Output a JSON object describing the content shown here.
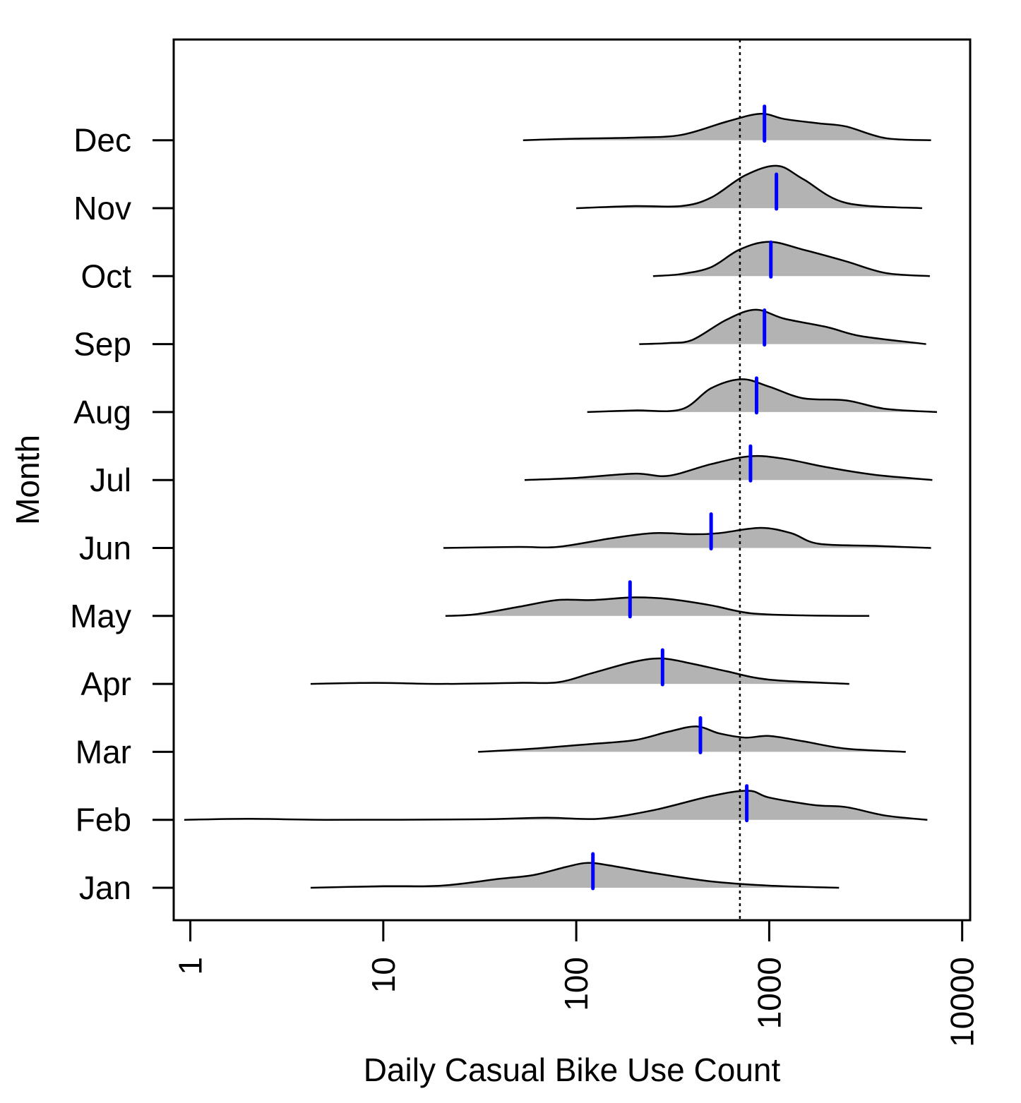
{
  "chart_data": {
    "type": "ridgeline",
    "xlabel": "Daily Casual Bike Use Count",
    "ylabel": "Month",
    "x_scale": "log10",
    "xlim": [
      0.82,
      11000
    ],
    "x_ticks": [
      1,
      10,
      100,
      1000,
      10000
    ],
    "x_tick_labels": [
      "1",
      "10",
      "100",
      "1000",
      "10000"
    ],
    "reference_line": {
      "x": 705,
      "style": "dotted",
      "color": "#000000"
    },
    "fill_color": "#b3b3b3",
    "median_color": "#0000ff",
    "categories": [
      "Jan",
      "Feb",
      "Mar",
      "Apr",
      "May",
      "Jun",
      "Jul",
      "Aug",
      "Sep",
      "Oct",
      "Nov",
      "Dec"
    ],
    "series": [
      {
        "name": "Jan",
        "median": 122,
        "density": [
          [
            4.2,
            0
          ],
          [
            10,
            0.03
          ],
          [
            20,
            0.04
          ],
          [
            40,
            0.17
          ],
          [
            60,
            0.24
          ],
          [
            90,
            0.4
          ],
          [
            115,
            0.47
          ],
          [
            150,
            0.42
          ],
          [
            250,
            0.28
          ],
          [
            500,
            0.12
          ],
          [
            1000,
            0.04
          ],
          [
            2300,
            0
          ]
        ]
      },
      {
        "name": "Feb",
        "median": 765,
        "density": [
          [
            0.93,
            0
          ],
          [
            2,
            0.02
          ],
          [
            5,
            0
          ],
          [
            30,
            0.01
          ],
          [
            70,
            0.04
          ],
          [
            130,
            0.02
          ],
          [
            250,
            0.18
          ],
          [
            500,
            0.45
          ],
          [
            780,
            0.55
          ],
          [
            1000,
            0.42
          ],
          [
            1700,
            0.28
          ],
          [
            2500,
            0.24
          ],
          [
            4000,
            0.08
          ],
          [
            6600,
            0
          ]
        ]
      },
      {
        "name": "Mar",
        "median": 440,
        "density": [
          [
            31,
            0
          ],
          [
            60,
            0.06
          ],
          [
            120,
            0.15
          ],
          [
            200,
            0.22
          ],
          [
            300,
            0.38
          ],
          [
            420,
            0.48
          ],
          [
            550,
            0.35
          ],
          [
            750,
            0.27
          ],
          [
            1000,
            0.3
          ],
          [
            1500,
            0.2
          ],
          [
            2500,
            0.06
          ],
          [
            5100,
            0
          ]
        ]
      },
      {
        "name": "Apr",
        "median": 280,
        "density": [
          [
            4.2,
            0
          ],
          [
            9,
            0.02
          ],
          [
            20,
            0
          ],
          [
            50,
            0.02
          ],
          [
            80,
            0.03
          ],
          [
            120,
            0.2
          ],
          [
            200,
            0.42
          ],
          [
            280,
            0.48
          ],
          [
            400,
            0.38
          ],
          [
            600,
            0.24
          ],
          [
            1000,
            0.08
          ],
          [
            2600,
            0
          ]
        ]
      },
      {
        "name": "May",
        "median": 190,
        "density": [
          [
            21,
            0
          ],
          [
            30,
            0.03
          ],
          [
            50,
            0.17
          ],
          [
            80,
            0.3
          ],
          [
            120,
            0.3
          ],
          [
            200,
            0.35
          ],
          [
            300,
            0.32
          ],
          [
            500,
            0.2
          ],
          [
            800,
            0.05
          ],
          [
            1500,
            0.01
          ],
          [
            3300,
            0
          ]
        ]
      },
      {
        "name": "Jun",
        "median": 500,
        "density": [
          [
            20.5,
            0
          ],
          [
            50,
            0.02
          ],
          [
            80,
            0.02
          ],
          [
            150,
            0.18
          ],
          [
            250,
            0.28
          ],
          [
            400,
            0.26
          ],
          [
            550,
            0.28
          ],
          [
            900,
            0.38
          ],
          [
            1300,
            0.28
          ],
          [
            1800,
            0.08
          ],
          [
            3500,
            0.04
          ],
          [
            6900,
            0
          ]
        ]
      },
      {
        "name": "Jul",
        "median": 800,
        "density": [
          [
            54,
            0
          ],
          [
            100,
            0.04
          ],
          [
            200,
            0.12
          ],
          [
            300,
            0.08
          ],
          [
            500,
            0.3
          ],
          [
            800,
            0.45
          ],
          [
            1200,
            0.4
          ],
          [
            2000,
            0.24
          ],
          [
            3500,
            0.1
          ],
          [
            7000,
            0
          ]
        ]
      },
      {
        "name": "Aug",
        "median": 860,
        "density": [
          [
            114,
            0
          ],
          [
            200,
            0.03
          ],
          [
            350,
            0.05
          ],
          [
            500,
            0.45
          ],
          [
            720,
            0.62
          ],
          [
            1000,
            0.48
          ],
          [
            1500,
            0.26
          ],
          [
            2500,
            0.22
          ],
          [
            4000,
            0.06
          ],
          [
            7400,
            0
          ]
        ]
      },
      {
        "name": "Sep",
        "median": 945,
        "density": [
          [
            212,
            0
          ],
          [
            300,
            0.02
          ],
          [
            400,
            0.08
          ],
          [
            600,
            0.46
          ],
          [
            850,
            0.65
          ],
          [
            1200,
            0.48
          ],
          [
            2000,
            0.32
          ],
          [
            3000,
            0.15
          ],
          [
            6500,
            0
          ]
        ]
      },
      {
        "name": "Oct",
        "median": 1020,
        "density": [
          [
            250,
            0
          ],
          [
            350,
            0.04
          ],
          [
            500,
            0.17
          ],
          [
            700,
            0.5
          ],
          [
            1000,
            0.65
          ],
          [
            1500,
            0.5
          ],
          [
            2500,
            0.28
          ],
          [
            4000,
            0.06
          ],
          [
            6800,
            0
          ]
        ]
      },
      {
        "name": "Nov",
        "median": 1090,
        "density": [
          [
            100,
            0
          ],
          [
            200,
            0.04
          ],
          [
            350,
            0.04
          ],
          [
            500,
            0.2
          ],
          [
            750,
            0.62
          ],
          [
            1100,
            0.8
          ],
          [
            1500,
            0.55
          ],
          [
            2500,
            0.1
          ],
          [
            6200,
            0
          ]
        ]
      },
      {
        "name": "Dec",
        "median": 945,
        "density": [
          [
            53,
            0
          ],
          [
            100,
            0.03
          ],
          [
            200,
            0.05
          ],
          [
            350,
            0.1
          ],
          [
            600,
            0.35
          ],
          [
            900,
            0.5
          ],
          [
            1200,
            0.4
          ],
          [
            1800,
            0.32
          ],
          [
            2500,
            0.26
          ],
          [
            4000,
            0.04
          ],
          [
            6900,
            0
          ]
        ]
      }
    ]
  }
}
